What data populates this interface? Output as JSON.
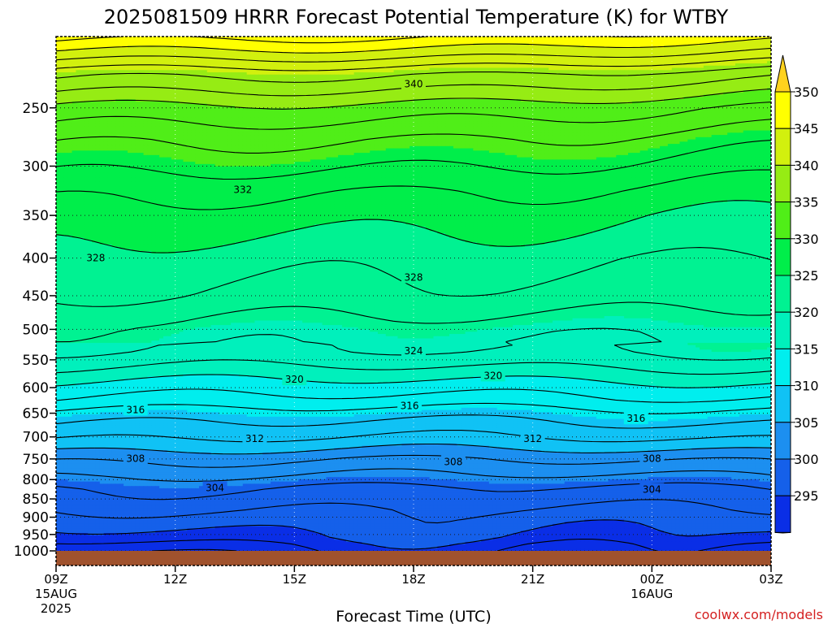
{
  "chart_data": {
    "type": "heatmap",
    "title": "2025081509 HRRR Forecast Potential Temperature (K) for WTBY",
    "xlabel": "Forecast Time (UTC)",
    "ylabel": "",
    "x_ticks": [
      {
        "label": "09Z",
        "sub": [
          "15AUG",
          "2025"
        ],
        "hour": 0
      },
      {
        "label": "12Z",
        "sub": [],
        "hour": 3
      },
      {
        "label": "15Z",
        "sub": [],
        "hour": 6
      },
      {
        "label": "18Z",
        "sub": [],
        "hour": 9
      },
      {
        "label": "21Z",
        "sub": [],
        "hour": 12
      },
      {
        "label": "00Z",
        "sub": [
          "16AUG"
        ],
        "hour": 15
      },
      {
        "label": "03Z",
        "sub": [],
        "hour": 18
      }
    ],
    "pressure_ticks": [
      250,
      300,
      350,
      400,
      450,
      500,
      550,
      600,
      650,
      700,
      750,
      800,
      850,
      900,
      950,
      1000
    ],
    "pressure_range": [
      200,
      1015
    ],
    "ground_pressure": 1000,
    "colorbar": {
      "labels": [
        350,
        345,
        340,
        335,
        330,
        325,
        320,
        315,
        310,
        305,
        300,
        295
      ],
      "colors": [
        "#0000cc",
        "#0a2ee6",
        "#1560ea",
        "#1c8ff0",
        "#10c2f5",
        "#00eeee",
        "#00f0bc",
        "#00f292",
        "#00ee4a",
        "#50ee18",
        "#96ec14",
        "#d2f00e",
        "#ffff00",
        "#ffd21e"
      ]
    },
    "contour_levels": [
      296,
      298,
      300,
      302,
      304,
      306,
      308,
      310,
      312,
      314,
      316,
      318,
      320,
      322,
      324,
      326,
      328,
      330,
      332,
      334,
      336,
      338,
      340,
      342,
      344,
      346,
      348,
      350,
      352
    ],
    "contour_labels": [
      {
        "value": "340",
        "hour": 9.0,
        "pressure": 232
      },
      {
        "value": "332",
        "hour": 4.7,
        "pressure": 323
      },
      {
        "value": "328",
        "hour": 1.0,
        "pressure": 400
      },
      {
        "value": "328",
        "hour": 9.0,
        "pressure": 425
      },
      {
        "value": "324",
        "hour": 9.0,
        "pressure": 535
      },
      {
        "value": "320",
        "hour": 6.0,
        "pressure": 585
      },
      {
        "value": "320",
        "hour": 11.0,
        "pressure": 578
      },
      {
        "value": "316",
        "hour": 2.0,
        "pressure": 643
      },
      {
        "value": "316",
        "hour": 8.9,
        "pressure": 635
      },
      {
        "value": "316",
        "hour": 14.6,
        "pressure": 661
      },
      {
        "value": "312",
        "hour": 5.0,
        "pressure": 704
      },
      {
        "value": "312",
        "hour": 12.0,
        "pressure": 704
      },
      {
        "value": "308",
        "hour": 2.0,
        "pressure": 749
      },
      {
        "value": "308",
        "hour": 10.0,
        "pressure": 757
      },
      {
        "value": "308",
        "hour": 15.0,
        "pressure": 749
      },
      {
        "value": "304",
        "hour": 4.0,
        "pressure": 821
      },
      {
        "value": "304",
        "hour": 15.0,
        "pressure": 825
      }
    ],
    "grid": true,
    "legend": "colorbar-right"
  },
  "footer": {
    "credit": "coolwx.com/models"
  }
}
